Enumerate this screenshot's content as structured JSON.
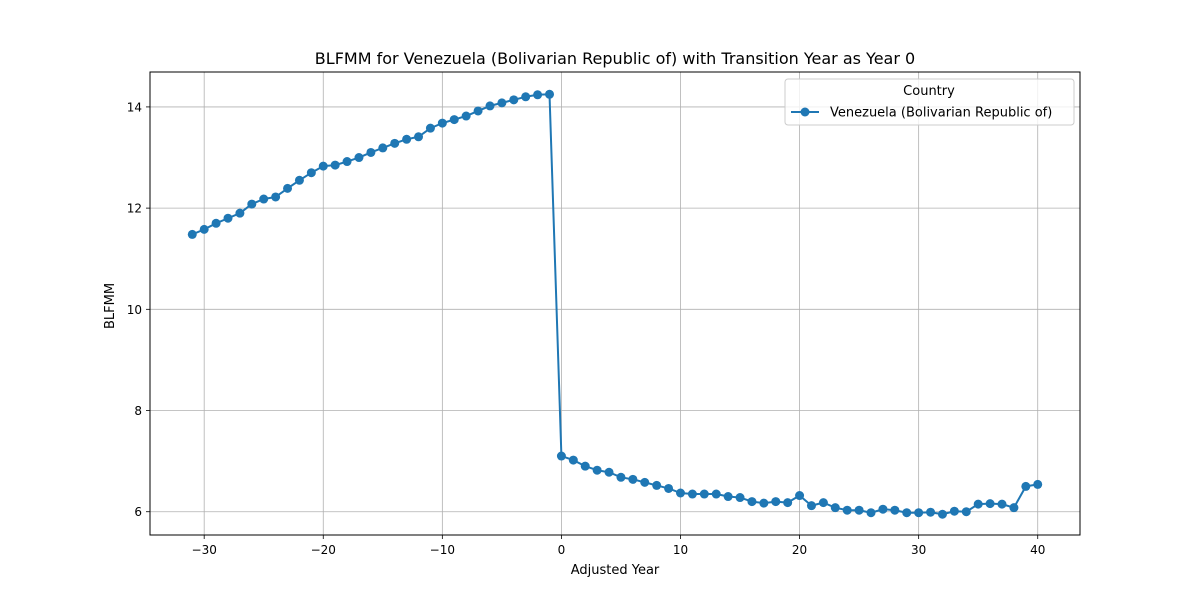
{
  "chart_data": {
    "type": "line",
    "title": "BLFMM for Venezuela (Bolivarian Republic of) with Transition Year as Year 0",
    "xlabel": "Adjusted Year",
    "ylabel": "BLFMM",
    "xlim": [
      -34.55,
      43.55
    ],
    "ylim": [
      5.54,
      14.69
    ],
    "xticks": [
      -30,
      -20,
      -10,
      0,
      10,
      20,
      30,
      40
    ],
    "xtick_labels": [
      "−30",
      "−20",
      "−10",
      "0",
      "10",
      "20",
      "30",
      "40"
    ],
    "yticks": [
      6,
      8,
      10,
      12,
      14
    ],
    "ytick_labels": [
      "6",
      "8",
      "10",
      "12",
      "14"
    ],
    "grid": true,
    "legend": {
      "title": "Country",
      "position": "top-right"
    },
    "series": [
      {
        "name": "Venezuela (Bolivarian Republic of)",
        "color": "#1f77b4",
        "marker": "circle",
        "x": [
          -31,
          -30,
          -29,
          -28,
          -27,
          -26,
          -25,
          -24,
          -23,
          -22,
          -21,
          -20,
          -19,
          -18,
          -17,
          -16,
          -15,
          -14,
          -13,
          -12,
          -11,
          -10,
          -9,
          -8,
          -7,
          -6,
          -5,
          -4,
          -3,
          -2,
          -1,
          0,
          1,
          2,
          3,
          4,
          5,
          6,
          7,
          8,
          9,
          10,
          11,
          12,
          13,
          14,
          15,
          16,
          17,
          18,
          19,
          20,
          21,
          22,
          23,
          24,
          25,
          26,
          27,
          28,
          29,
          30,
          31,
          32,
          33,
          34,
          35,
          36,
          37,
          38,
          39,
          40
        ],
        "y": [
          11.48,
          11.58,
          11.7,
          11.8,
          11.9,
          12.08,
          12.18,
          12.22,
          12.39,
          12.55,
          12.7,
          12.83,
          12.85,
          12.92,
          13.0,
          13.1,
          13.19,
          13.28,
          13.36,
          13.41,
          13.58,
          13.68,
          13.75,
          13.82,
          13.92,
          14.02,
          14.08,
          14.14,
          14.2,
          14.24,
          14.25,
          7.1,
          7.02,
          6.9,
          6.82,
          6.78,
          6.68,
          6.64,
          6.58,
          6.52,
          6.46,
          6.37,
          6.35,
          6.35,
          6.35,
          6.3,
          6.28,
          6.2,
          6.17,
          6.2,
          6.18,
          6.32,
          6.12,
          6.18,
          6.08,
          6.03,
          6.03,
          5.98,
          6.05,
          6.03,
          5.98,
          5.98,
          5.99,
          5.95,
          6.01,
          6.0,
          6.15,
          6.16,
          6.15,
          6.08,
          6.5,
          6.54
        ]
      }
    ]
  }
}
